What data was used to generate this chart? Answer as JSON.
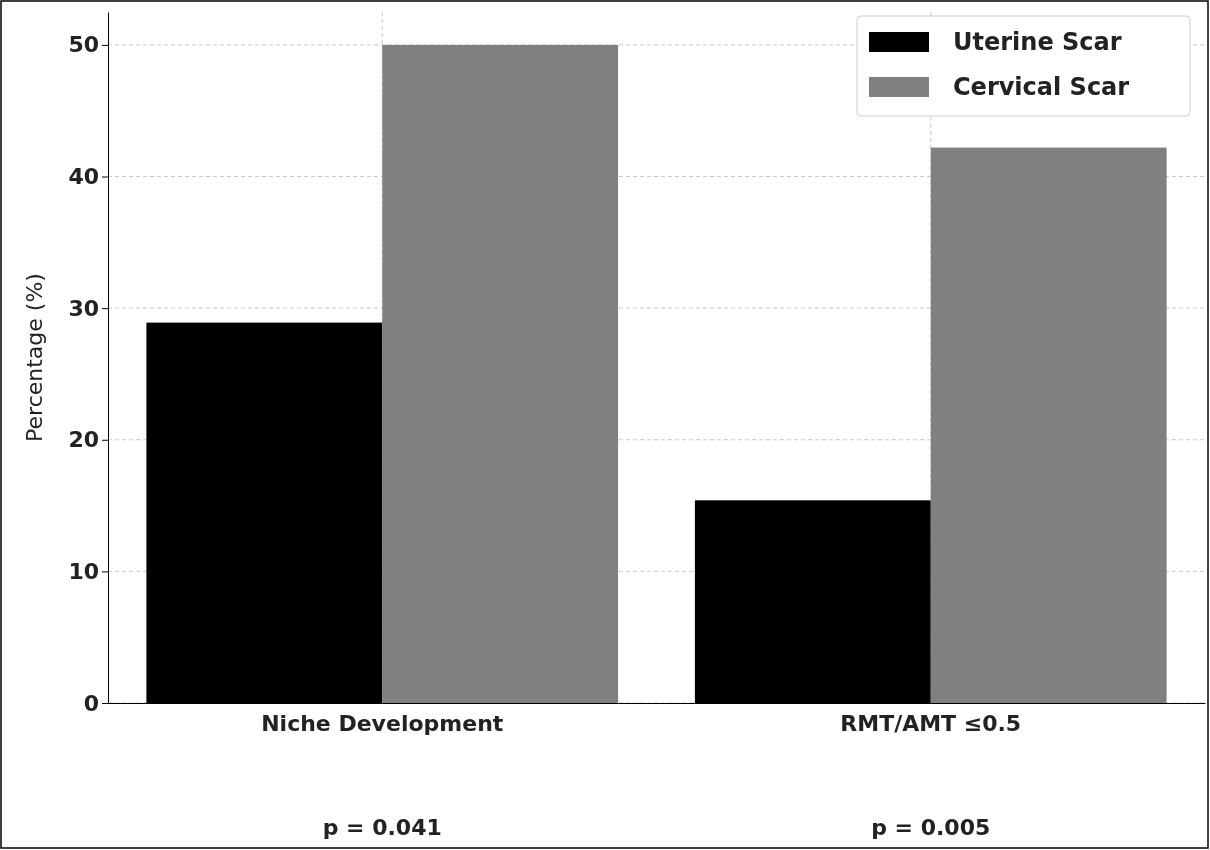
{
  "chart_data": {
    "type": "bar",
    "ylabel": "Percentage (%)",
    "categories": [
      "Niche Development",
      "RMT/AMT ≤0.5"
    ],
    "series": [
      {
        "name": "Uterine Scar",
        "color": "#000000",
        "values": [
          28.9,
          15.4
        ]
      },
      {
        "name": "Cervical Scar",
        "color": "#808080",
        "values": [
          50,
          42.2
        ]
      }
    ],
    "ylim": [
      0,
      52.5
    ],
    "yticks": [
      0,
      10,
      20,
      30,
      40,
      50
    ],
    "grid": true,
    "legend": "top right",
    "annotations": [
      "p = 0.041",
      "p = 0.005"
    ]
  }
}
